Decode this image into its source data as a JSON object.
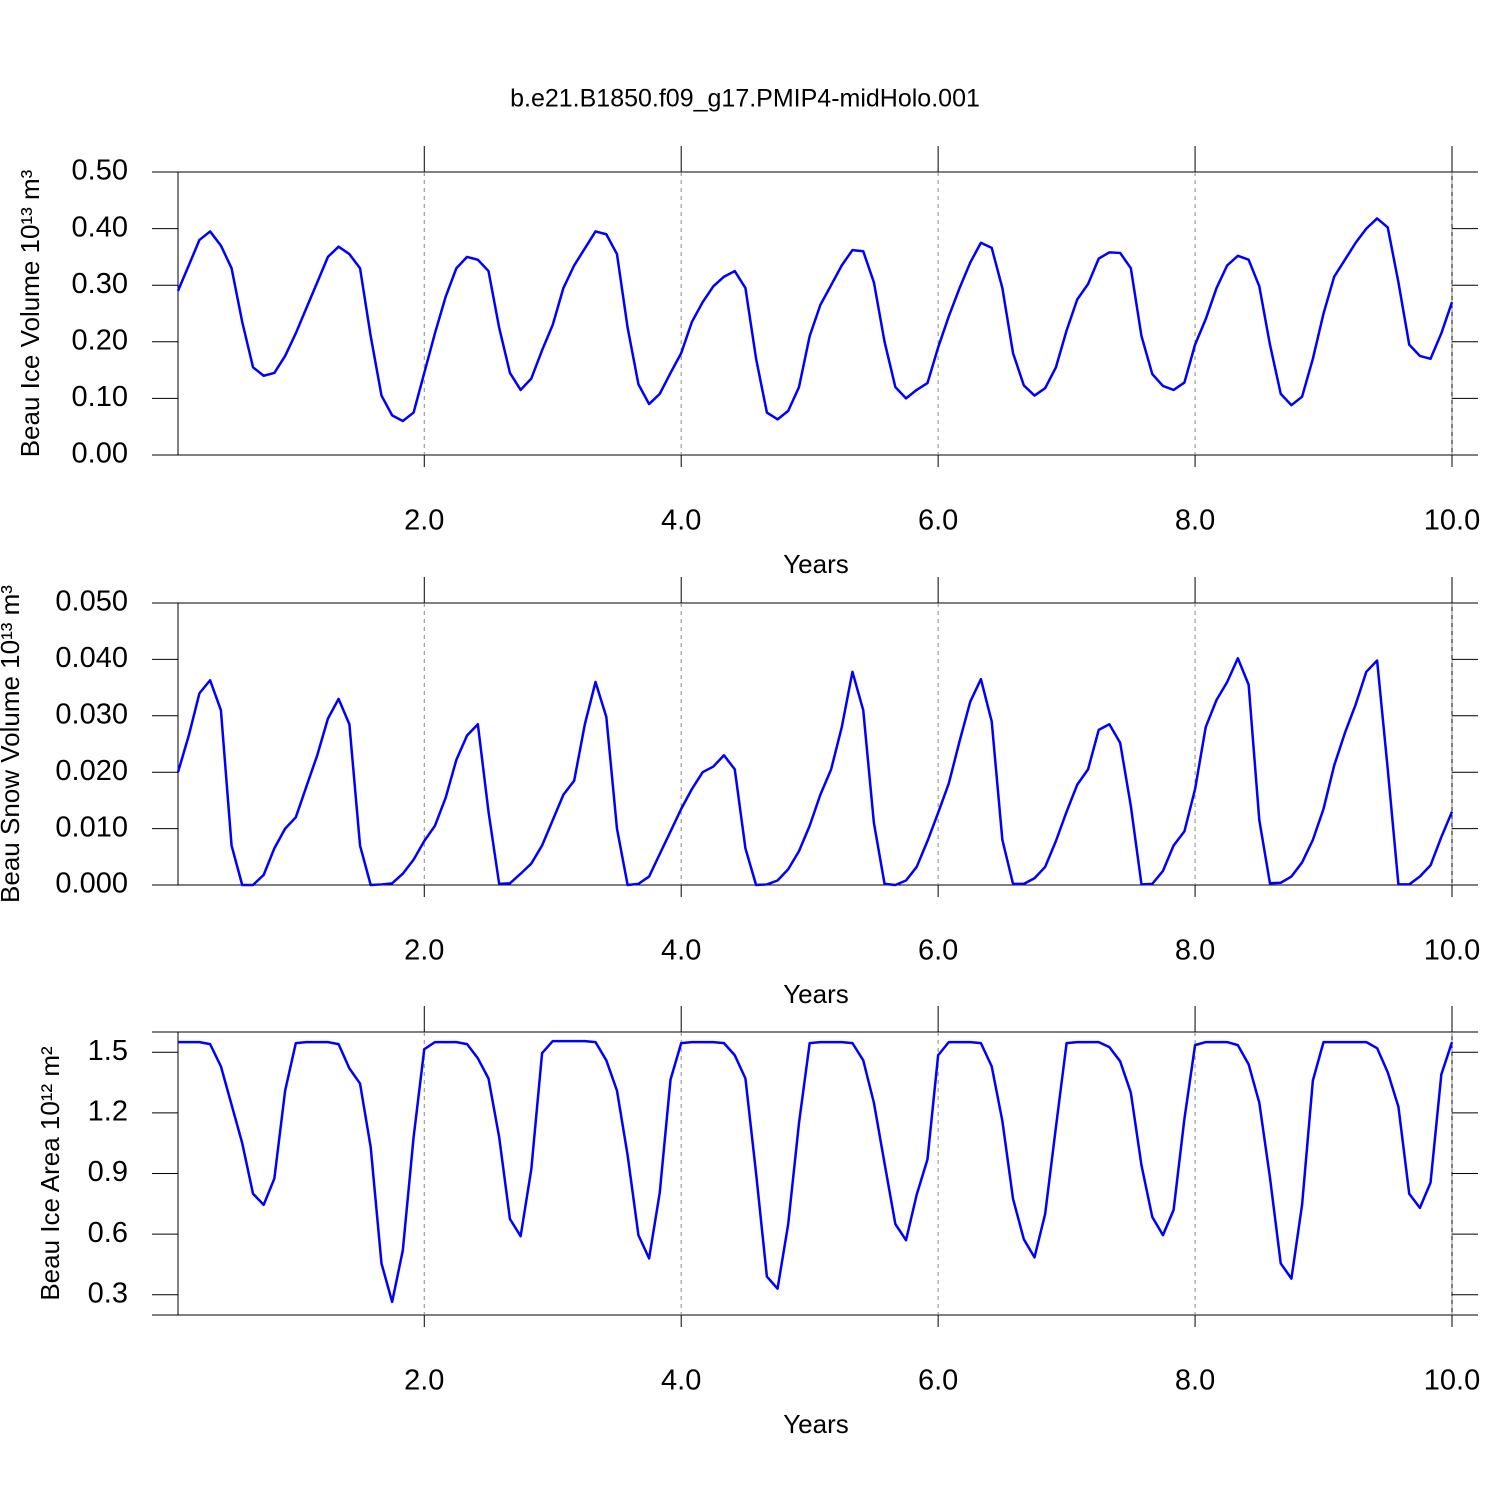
{
  "chart_data": [
    {
      "type": "line",
      "title": "b.e21.B1850.f09_g17.PMIP4-midHolo.001",
      "xlabel": "Years",
      "ylabel": "Beau Ice Volume 10¹³ m³",
      "color": "#0000ff",
      "xgrid": true,
      "xlim": [
        0.083,
        10
      ],
      "ylim": [
        0,
        0.5
      ],
      "xticks": [
        {
          "value": 2,
          "label": "2.0"
        },
        {
          "value": 4,
          "label": "4.0"
        },
        {
          "value": 6,
          "label": "6.0"
        },
        {
          "value": 8,
          "label": "8.0"
        },
        {
          "value": 10,
          "label": "10.0"
        }
      ],
      "yticks": [
        {
          "value": 0,
          "label": "0.00"
        },
        {
          "value": 0.1,
          "label": "0.10"
        },
        {
          "value": 0.2,
          "label": "0.20"
        },
        {
          "value": 0.3,
          "label": "0.30"
        },
        {
          "value": 0.4,
          "label": "0.40"
        },
        {
          "value": 0.5,
          "label": "0.50"
        }
      ],
      "x": [
        0.083,
        0.167,
        0.25,
        0.333,
        0.417,
        0.5,
        0.583,
        0.667,
        0.75,
        0.833,
        0.917,
        1,
        1.083,
        1.167,
        1.25,
        1.333,
        1.417,
        1.5,
        1.583,
        1.667,
        1.75,
        1.833,
        1.917,
        2,
        2.083,
        2.167,
        2.25,
        2.333,
        2.417,
        2.5,
        2.583,
        2.667,
        2.75,
        2.833,
        2.917,
        3,
        3.083,
        3.167,
        3.25,
        3.333,
        3.417,
        3.5,
        3.583,
        3.667,
        3.75,
        3.833,
        3.917,
        4,
        4.083,
        4.167,
        4.25,
        4.333,
        4.417,
        4.5,
        4.583,
        4.667,
        4.75,
        4.833,
        4.917,
        5,
        5.083,
        5.167,
        5.25,
        5.333,
        5.417,
        5.5,
        5.583,
        5.667,
        5.75,
        5.833,
        5.917,
        6,
        6.083,
        6.167,
        6.25,
        6.333,
        6.417,
        6.5,
        6.583,
        6.667,
        6.75,
        6.833,
        6.917,
        7,
        7.083,
        7.167,
        7.25,
        7.333,
        7.417,
        7.5,
        7.583,
        7.667,
        7.75,
        7.833,
        7.917,
        8,
        8.083,
        8.167,
        8.25,
        8.333,
        8.417,
        8.5,
        8.583,
        8.667,
        8.75,
        8.833,
        8.917,
        9,
        9.083,
        9.167,
        9.25,
        9.333,
        9.417,
        9.5,
        9.583,
        9.667,
        9.75,
        9.833,
        9.917,
        10
      ],
      "values": [
        0.29,
        0.335,
        0.38,
        0.395,
        0.37,
        0.33,
        0.235,
        0.155,
        0.14,
        0.145,
        0.175,
        0.215,
        0.26,
        0.305,
        0.35,
        0.368,
        0.355,
        0.33,
        0.21,
        0.105,
        0.07,
        0.06,
        0.075,
        0.145,
        0.215,
        0.28,
        0.33,
        0.35,
        0.345,
        0.325,
        0.225,
        0.145,
        0.115,
        0.135,
        0.185,
        0.23,
        0.295,
        0.335,
        0.365,
        0.395,
        0.39,
        0.355,
        0.225,
        0.125,
        0.09,
        0.108,
        0.145,
        0.18,
        0.235,
        0.27,
        0.298,
        0.315,
        0.325,
        0.295,
        0.17,
        0.075,
        0.063,
        0.078,
        0.12,
        0.21,
        0.265,
        0.3,
        0.335,
        0.362,
        0.36,
        0.305,
        0.2,
        0.12,
        0.1,
        0.115,
        0.127,
        0.19,
        0.245,
        0.295,
        0.34,
        0.375,
        0.366,
        0.295,
        0.18,
        0.123,
        0.105,
        0.118,
        0.155,
        0.22,
        0.275,
        0.302,
        0.347,
        0.358,
        0.357,
        0.33,
        0.21,
        0.143,
        0.122,
        0.115,
        0.128,
        0.195,
        0.24,
        0.295,
        0.335,
        0.352,
        0.345,
        0.298,
        0.195,
        0.108,
        0.088,
        0.103,
        0.17,
        0.25,
        0.315,
        0.345,
        0.375,
        0.4,
        0.418,
        0.402,
        0.305,
        0.195,
        0.175,
        0.17,
        0.215,
        0.27
      ]
    },
    {
      "type": "line",
      "xlabel": "Years",
      "ylabel": "Beau Snow Volume 10¹³ m³",
      "color": "#0000ff",
      "xgrid": true,
      "xlim": [
        0.083,
        10
      ],
      "ylim": [
        0,
        0.05
      ],
      "xticks": [
        {
          "value": 2,
          "label": "2.0"
        },
        {
          "value": 4,
          "label": "4.0"
        },
        {
          "value": 6,
          "label": "6.0"
        },
        {
          "value": 8,
          "label": "8.0"
        },
        {
          "value": 10,
          "label": "10.0"
        }
      ],
      "yticks": [
        {
          "value": 0,
          "label": "0.000"
        },
        {
          "value": 0.01,
          "label": "0.010"
        },
        {
          "value": 0.02,
          "label": "0.020"
        },
        {
          "value": 0.03,
          "label": "0.030"
        },
        {
          "value": 0.04,
          "label": "0.040"
        },
        {
          "value": 0.05,
          "label": "0.050"
        }
      ],
      "x": [
        0.083,
        0.167,
        0.25,
        0.333,
        0.417,
        0.5,
        0.583,
        0.667,
        0.75,
        0.833,
        0.917,
        1,
        1.083,
        1.167,
        1.25,
        1.333,
        1.417,
        1.5,
        1.583,
        1.667,
        1.75,
        1.833,
        1.917,
        2,
        2.083,
        2.167,
        2.25,
        2.333,
        2.417,
        2.5,
        2.583,
        2.667,
        2.75,
        2.833,
        2.917,
        3,
        3.083,
        3.167,
        3.25,
        3.333,
        3.417,
        3.5,
        3.583,
        3.667,
        3.75,
        3.833,
        3.917,
        4,
        4.083,
        4.167,
        4.25,
        4.333,
        4.417,
        4.5,
        4.583,
        4.667,
        4.75,
        4.833,
        4.917,
        5,
        5.083,
        5.167,
        5.25,
        5.333,
        5.417,
        5.5,
        5.583,
        5.667,
        5.75,
        5.833,
        5.917,
        6,
        6.083,
        6.167,
        6.25,
        6.333,
        6.417,
        6.5,
        6.583,
        6.667,
        6.75,
        6.833,
        6.917,
        7,
        7.083,
        7.167,
        7.25,
        7.333,
        7.417,
        7.5,
        7.583,
        7.667,
        7.75,
        7.833,
        7.917,
        8,
        8.083,
        8.167,
        8.25,
        8.333,
        8.417,
        8.5,
        8.583,
        8.667,
        8.75,
        8.833,
        8.917,
        9,
        9.083,
        9.167,
        9.25,
        9.333,
        9.417,
        9.5,
        9.583,
        9.667,
        9.75,
        9.833,
        9.917,
        10
      ],
      "values": [
        0.02,
        0.0265,
        0.034,
        0.0363,
        0.031,
        0.007,
        0,
        0,
        0.0018,
        0.0065,
        0.01,
        0.012,
        0.0175,
        0.023,
        0.0295,
        0.033,
        0.0285,
        0.007,
        0,
        0.0001,
        0.0003,
        0.002,
        0.0045,
        0.0078,
        0.0105,
        0.0155,
        0.0222,
        0.0265,
        0.0285,
        0.013,
        0.0002,
        0.0003,
        0.002,
        0.0038,
        0.007,
        0.0115,
        0.016,
        0.0185,
        0.0285,
        0.036,
        0.0298,
        0.01,
        0,
        0.0002,
        0.0015,
        0.0055,
        0.0095,
        0.0135,
        0.017,
        0.02,
        0.021,
        0.023,
        0.0205,
        0.0065,
        0,
        0.0001,
        0.0008,
        0.0028,
        0.006,
        0.0105,
        0.016,
        0.0205,
        0.028,
        0.0378,
        0.031,
        0.011,
        0.0002,
        0,
        0.0008,
        0.0032,
        0.0078,
        0.0128,
        0.018,
        0.0255,
        0.0325,
        0.0365,
        0.029,
        0.008,
        0.0002,
        0.0002,
        0.0012,
        0.0032,
        0.0078,
        0.013,
        0.0178,
        0.0205,
        0.0275,
        0.0285,
        0.0252,
        0.014,
        0.0001,
        0.0002,
        0.0025,
        0.007,
        0.0095,
        0.017,
        0.028,
        0.0328,
        0.036,
        0.0402,
        0.0355,
        0.0115,
        0.0003,
        0.0004,
        0.0015,
        0.004,
        0.008,
        0.0135,
        0.0212,
        0.027,
        0.032,
        0.0378,
        0.0398,
        0.0205,
        0.0001,
        0.0001,
        0.0015,
        0.0035,
        0.0085,
        0.013
      ]
    },
    {
      "type": "line",
      "xlabel": "Years",
      "ylabel": "Beau Ice Area 10¹² m²",
      "color": "#0000ff",
      "xgrid": true,
      "xlim": [
        0.083,
        10
      ],
      "ylim": [
        0.2,
        1.6
      ],
      "xticks": [
        {
          "value": 2,
          "label": "2.0"
        },
        {
          "value": 4,
          "label": "4.0"
        },
        {
          "value": 6,
          "label": "6.0"
        },
        {
          "value": 8,
          "label": "8.0"
        },
        {
          "value": 10,
          "label": "10.0"
        }
      ],
      "yticks": [
        0.3,
        0.6,
        0.9,
        1.2,
        1.5
      ],
      "x": [
        0.083,
        0.167,
        0.25,
        0.333,
        0.417,
        0.5,
        0.583,
        0.667,
        0.75,
        0.833,
        0.917,
        1,
        1.083,
        1.167,
        1.25,
        1.333,
        1.417,
        1.5,
        1.583,
        1.667,
        1.75,
        1.833,
        1.917,
        2,
        2.083,
        2.167,
        2.25,
        2.333,
        2.417,
        2.5,
        2.583,
        2.667,
        2.75,
        2.833,
        2.917,
        3,
        3.083,
        3.167,
        3.25,
        3.333,
        3.417,
        3.5,
        3.583,
        3.667,
        3.75,
        3.833,
        3.917,
        4,
        4.083,
        4.167,
        4.25,
        4.333,
        4.417,
        4.5,
        4.583,
        4.667,
        4.75,
        4.833,
        4.917,
        5,
        5.083,
        5.167,
        5.25,
        5.333,
        5.417,
        5.5,
        5.583,
        5.667,
        5.75,
        5.833,
        5.917,
        6,
        6.083,
        6.167,
        6.25,
        6.333,
        6.417,
        6.5,
        6.583,
        6.667,
        6.75,
        6.833,
        6.917,
        7,
        7.083,
        7.167,
        7.25,
        7.333,
        7.417,
        7.5,
        7.583,
        7.667,
        7.75,
        7.833,
        7.917,
        8,
        8.083,
        8.167,
        8.25,
        8.333,
        8.417,
        8.5,
        8.583,
        8.667,
        8.75,
        8.833,
        8.917,
        9,
        9.083,
        9.167,
        9.25,
        9.333,
        9.417,
        9.5,
        9.583,
        9.667,
        9.75,
        9.833,
        9.917,
        10
      ],
      "values": [
        1.55,
        1.55,
        1.55,
        1.54,
        1.43,
        1.24,
        1.05,
        0.8,
        0.745,
        0.875,
        1.31,
        1.545,
        1.55,
        1.55,
        1.55,
        1.54,
        1.42,
        1.345,
        1.03,
        0.455,
        0.265,
        0.52,
        1.08,
        1.515,
        1.55,
        1.55,
        1.55,
        1.54,
        1.47,
        1.37,
        1.08,
        0.675,
        0.59,
        0.92,
        1.495,
        1.555,
        1.555,
        1.555,
        1.555,
        1.55,
        1.46,
        1.31,
        0.99,
        0.595,
        0.48,
        0.805,
        1.365,
        1.545,
        1.55,
        1.55,
        1.55,
        1.545,
        1.485,
        1.37,
        0.9,
        0.39,
        0.33,
        0.65,
        1.15,
        1.545,
        1.55,
        1.55,
        1.55,
        1.545,
        1.46,
        1.25,
        0.95,
        0.65,
        0.57,
        0.795,
        0.97,
        1.485,
        1.55,
        1.55,
        1.55,
        1.545,
        1.43,
        1.16,
        0.775,
        0.575,
        0.485,
        0.7,
        1.13,
        1.545,
        1.55,
        1.55,
        1.55,
        1.525,
        1.455,
        1.3,
        0.94,
        0.685,
        0.595,
        0.72,
        1.17,
        1.535,
        1.55,
        1.55,
        1.55,
        1.535,
        1.44,
        1.25,
        0.88,
        0.455,
        0.38,
        0.745,
        1.36,
        1.55,
        1.55,
        1.55,
        1.55,
        1.55,
        1.52,
        1.4,
        1.23,
        0.8,
        0.73,
        0.855,
        1.39,
        1.55
      ]
    }
  ]
}
